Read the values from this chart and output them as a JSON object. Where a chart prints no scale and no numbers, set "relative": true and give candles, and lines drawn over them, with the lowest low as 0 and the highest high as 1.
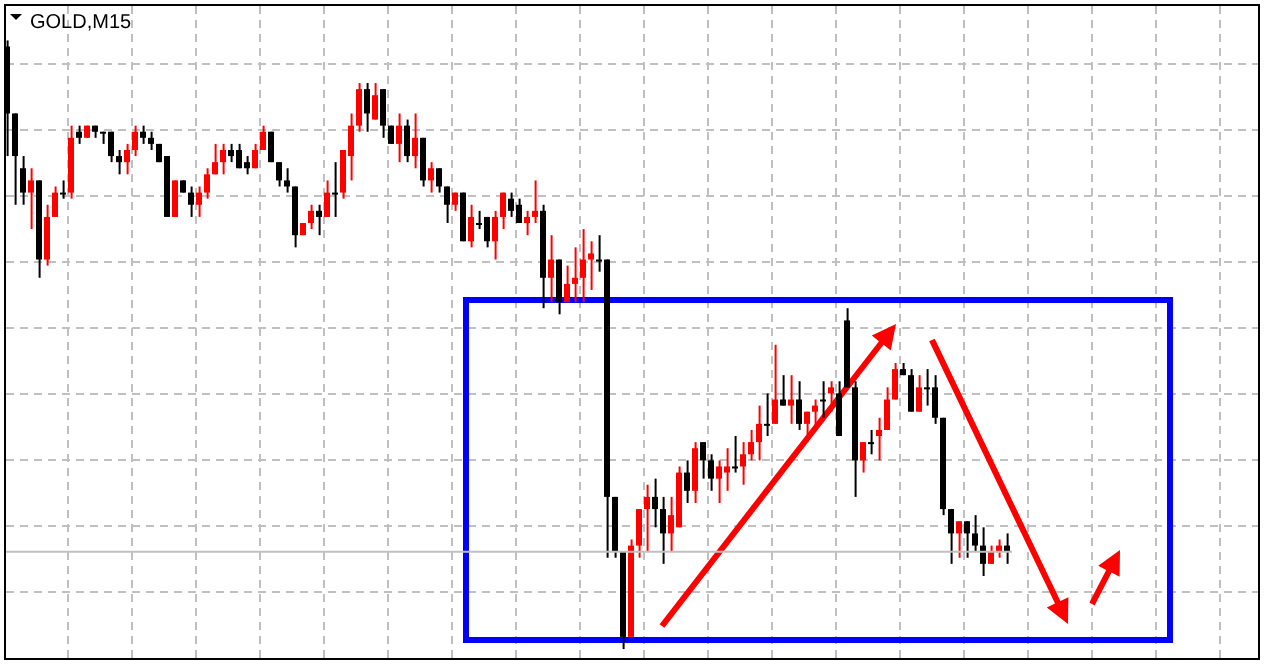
{
  "chart_data": {
    "type": "candlestick",
    "title": "GOLD,M15",
    "relative": true,
    "grid": true,
    "categories": [
      null,
      null,
      null,
      null,
      null,
      null,
      null,
      null,
      null,
      null,
      null,
      null,
      null,
      null,
      null,
      null,
      null,
      null,
      null,
      null,
      null,
      null,
      null,
      null,
      null,
      null,
      null,
      null,
      null,
      null,
      null,
      null,
      null,
      null,
      null,
      null,
      null,
      null,
      null,
      null,
      null,
      null,
      null,
      null,
      null,
      null,
      null,
      null,
      null,
      null,
      null,
      null,
      null,
      null,
      null,
      null,
      null,
      null,
      null,
      null,
      null,
      null,
      null,
      null,
      null,
      null,
      null,
      null,
      null,
      null,
      null,
      null,
      null,
      null,
      null,
      null,
      null,
      null,
      null,
      null,
      null,
      null,
      null,
      null,
      null,
      null,
      null,
      null,
      null,
      null,
      null,
      null,
      null,
      null,
      null,
      null,
      null,
      null,
      null,
      null,
      null,
      null,
      null,
      null,
      null,
      null,
      null,
      null,
      null,
      null,
      null,
      null,
      null,
      null,
      null,
      null,
      null,
      null,
      null,
      null,
      null,
      null,
      null,
      null,
      null,
      null
    ],
    "ohlc": [
      [
        0.99,
        1.0,
        0.81,
        0.88
      ],
      [
        0.88,
        0.88,
        0.73,
        0.81
      ],
      [
        0.79,
        0.81,
        0.73,
        0.75
      ],
      [
        0.75,
        0.79,
        0.69,
        0.77
      ],
      [
        0.77,
        0.77,
        0.61,
        0.64
      ],
      [
        0.64,
        0.73,
        0.63,
        0.71
      ],
      [
        0.71,
        0.76,
        0.71,
        0.75
      ],
      [
        0.75,
        0.77,
        0.74,
        0.75
      ],
      [
        0.75,
        0.86,
        0.74,
        0.84
      ],
      [
        0.85,
        0.86,
        0.83,
        0.84
      ],
      [
        0.84,
        0.86,
        0.84,
        0.86
      ],
      [
        0.86,
        0.86,
        0.84,
        0.85
      ],
      [
        0.85,
        0.85,
        0.83,
        0.85
      ],
      [
        0.85,
        0.85,
        0.8,
        0.81
      ],
      [
        0.81,
        0.82,
        0.78,
        0.8
      ],
      [
        0.8,
        0.83,
        0.78,
        0.82
      ],
      [
        0.82,
        0.86,
        0.81,
        0.85
      ],
      [
        0.85,
        0.86,
        0.83,
        0.84
      ],
      [
        0.84,
        0.85,
        0.82,
        0.83
      ],
      [
        0.83,
        0.83,
        0.8,
        0.8
      ],
      [
        0.81,
        0.81,
        0.71,
        0.71
      ],
      [
        0.71,
        0.77,
        0.71,
        0.77
      ],
      [
        0.77,
        0.77,
        0.75,
        0.75
      ],
      [
        0.75,
        0.76,
        0.71,
        0.73
      ],
      [
        0.73,
        0.76,
        0.71,
        0.75
      ],
      [
        0.75,
        0.79,
        0.74,
        0.78
      ],
      [
        0.78,
        0.83,
        0.78,
        0.8
      ],
      [
        0.8,
        0.83,
        0.78,
        0.82
      ],
      [
        0.82,
        0.83,
        0.8,
        0.81
      ],
      [
        0.82,
        0.83,
        0.79,
        0.79
      ],
      [
        0.8,
        0.81,
        0.78,
        0.79
      ],
      [
        0.79,
        0.83,
        0.79,
        0.82
      ],
      [
        0.82,
        0.86,
        0.82,
        0.85
      ],
      [
        0.85,
        0.85,
        0.8,
        0.8
      ],
      [
        0.8,
        0.8,
        0.76,
        0.77
      ],
      [
        0.77,
        0.79,
        0.75,
        0.76
      ],
      [
        0.76,
        0.76,
        0.66,
        0.68
      ],
      [
        0.68,
        0.7,
        0.68,
        0.7
      ],
      [
        0.7,
        0.73,
        0.69,
        0.72
      ],
      [
        0.72,
        0.73,
        0.68,
        0.71
      ],
      [
        0.71,
        0.77,
        0.71,
        0.75
      ],
      [
        0.75,
        0.8,
        0.71,
        0.75
      ],
      [
        0.75,
        0.82,
        0.74,
        0.82
      ],
      [
        0.81,
        0.88,
        0.77,
        0.86
      ],
      [
        0.86,
        0.93,
        0.85,
        0.92
      ],
      [
        0.92,
        0.93,
        0.85,
        0.88
      ],
      [
        0.87,
        0.93,
        0.87,
        0.91
      ],
      [
        0.92,
        0.92,
        0.84,
        0.86
      ],
      [
        0.86,
        0.86,
        0.83,
        0.83
      ],
      [
        0.83,
        0.88,
        0.8,
        0.86
      ],
      [
        0.86,
        0.87,
        0.8,
        0.81
      ],
      [
        0.81,
        0.88,
        0.79,
        0.84
      ],
      [
        0.84,
        0.84,
        0.76,
        0.77
      ],
      [
        0.77,
        0.8,
        0.75,
        0.79
      ],
      [
        0.79,
        0.79,
        0.75,
        0.76
      ],
      [
        0.76,
        0.76,
        0.7,
        0.73
      ],
      [
        0.73,
        0.75,
        0.72,
        0.75
      ],
      [
        0.75,
        0.75,
        0.67,
        0.67
      ],
      [
        0.67,
        0.73,
        0.66,
        0.71
      ],
      [
        0.7,
        0.72,
        0.69,
        0.7
      ],
      [
        0.71,
        0.71,
        0.66,
        0.67
      ],
      [
        0.67,
        0.72,
        0.64,
        0.71
      ],
      [
        0.71,
        0.75,
        0.69,
        0.75
      ],
      [
        0.74,
        0.75,
        0.71,
        0.72
      ],
      [
        0.73,
        0.74,
        0.7,
        0.7
      ],
      [
        0.7,
        0.72,
        0.68,
        0.71
      ],
      [
        0.71,
        0.77,
        0.7,
        0.72
      ],
      [
        0.72,
        0.73,
        0.56,
        0.61
      ],
      [
        0.61,
        0.68,
        0.57,
        0.64
      ],
      [
        0.64,
        0.64,
        0.55,
        0.57
      ],
      [
        0.57,
        0.63,
        0.57,
        0.6
      ],
      [
        0.6,
        0.66,
        0.57,
        0.61
      ],
      [
        0.61,
        0.69,
        0.57,
        0.64
      ],
      [
        0.64,
        0.67,
        0.59,
        0.65
      ],
      [
        0.64,
        0.68,
        0.62,
        0.64
      ],
      [
        0.64,
        0.64,
        0.15,
        0.25
      ],
      [
        0.25,
        0.25,
        0.15,
        0.16
      ],
      [
        0.16,
        0.16,
        0.0,
        0.02
      ],
      [
        0.02,
        0.18,
        0.02,
        0.17
      ],
      [
        0.17,
        0.23,
        0.15,
        0.23
      ],
      [
        0.23,
        0.27,
        0.16,
        0.25
      ],
      [
        0.25,
        0.28,
        0.2,
        0.23
      ],
      [
        0.23,
        0.25,
        0.14,
        0.19
      ],
      [
        0.19,
        0.25,
        0.16,
        0.22
      ],
      [
        0.2,
        0.3,
        0.2,
        0.29
      ],
      [
        0.29,
        0.31,
        0.24,
        0.26
      ],
      [
        0.26,
        0.34,
        0.24,
        0.33
      ],
      [
        0.34,
        0.34,
        0.28,
        0.31
      ],
      [
        0.31,
        0.32,
        0.26,
        0.28
      ],
      [
        0.28,
        0.31,
        0.24,
        0.3
      ],
      [
        0.29,
        0.33,
        0.26,
        0.3
      ],
      [
        0.3,
        0.35,
        0.29,
        0.3
      ],
      [
        0.3,
        0.34,
        0.27,
        0.32
      ],
      [
        0.32,
        0.36,
        0.31,
        0.34
      ],
      [
        0.34,
        0.4,
        0.31,
        0.37
      ],
      [
        0.37,
        0.42,
        0.35,
        0.37
      ],
      [
        0.37,
        0.5,
        0.37,
        0.41
      ],
      [
        0.41,
        0.45,
        0.4,
        0.4
      ],
      [
        0.4,
        0.45,
        0.37,
        0.41
      ],
      [
        0.41,
        0.44,
        0.36,
        0.37
      ],
      [
        0.37,
        0.39,
        0.34,
        0.39
      ],
      [
        0.39,
        0.41,
        0.36,
        0.4
      ],
      [
        0.41,
        0.44,
        0.38,
        0.41
      ],
      [
        0.42,
        0.44,
        0.39,
        0.43
      ],
      [
        0.42,
        0.44,
        0.35,
        0.35
      ],
      [
        0.54,
        0.56,
        0.43,
        0.43
      ],
      [
        0.43,
        0.44,
        0.25,
        0.31
      ],
      [
        0.31,
        0.34,
        0.29,
        0.34
      ],
      [
        0.34,
        0.36,
        0.32,
        0.34
      ],
      [
        0.35,
        0.38,
        0.31,
        0.36
      ],
      [
        0.36,
        0.43,
        0.36,
        0.41
      ],
      [
        0.41,
        0.47,
        0.41,
        0.46
      ],
      [
        0.46,
        0.47,
        0.45,
        0.45
      ],
      [
        0.45,
        0.46,
        0.39,
        0.39
      ],
      [
        0.39,
        0.45,
        0.39,
        0.43
      ],
      [
        0.43,
        0.46,
        0.4,
        0.43
      ],
      [
        0.43,
        0.45,
        0.37,
        0.38
      ],
      [
        0.38,
        0.38,
        0.22,
        0.23
      ],
      [
        0.23,
        0.23,
        0.14,
        0.19
      ],
      [
        0.19,
        0.21,
        0.15,
        0.21
      ],
      [
        0.21,
        0.21,
        0.15,
        0.19
      ],
      [
        0.19,
        0.22,
        0.16,
        0.17
      ],
      [
        0.17,
        0.2,
        0.12,
        0.14
      ],
      [
        0.14,
        0.17,
        0.14,
        0.16
      ],
      [
        0.16,
        0.18,
        0.15,
        0.17
      ],
      [
        0.17,
        0.19,
        0.14,
        0.16
      ]
    ],
    "ref_lines": [
      {
        "axis": "y",
        "value": 0.16,
        "color": "#c0c0c0",
        "line_style": "solid"
      }
    ]
  }
}
